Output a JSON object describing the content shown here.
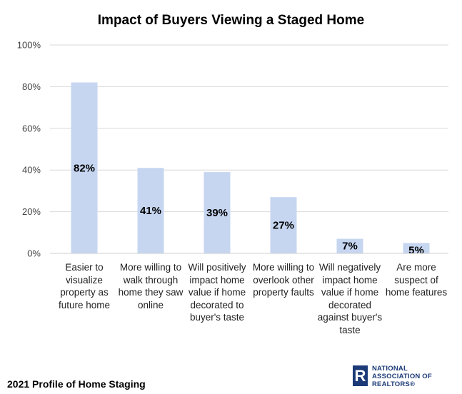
{
  "chart_data": {
    "type": "bar",
    "title": "Impact of Buyers Viewing a Staged Home",
    "categories": [
      "Easier to visualize property as future home",
      "More willing to walk through home they saw online",
      "Will positively impact home value if home decorated to buyer's taste",
      "More willing to overlook other property faults",
      "Will negatively impact home value if home decorated against buyer's taste",
      "Are more suspect of home features"
    ],
    "values": [
      82,
      41,
      39,
      27,
      7,
      5
    ],
    "data_labels": [
      "82%",
      "41%",
      "39%",
      "27%",
      "7%",
      "5%"
    ],
    "y_ticks": [
      "0%",
      "20%",
      "40%",
      "60%",
      "80%",
      "100%"
    ],
    "ylim": [
      0,
      100
    ],
    "grid": true,
    "bar_color": "#c6d6f1",
    "gridline_color": "#d9d9d9"
  },
  "footer": {
    "source": "2021 Profile of Home Staging"
  },
  "logo": {
    "mark": "R",
    "line1": "NATIONAL",
    "line2": "ASSOCIATION OF",
    "line3": "REALTORS®",
    "color": "#1b3a77"
  }
}
